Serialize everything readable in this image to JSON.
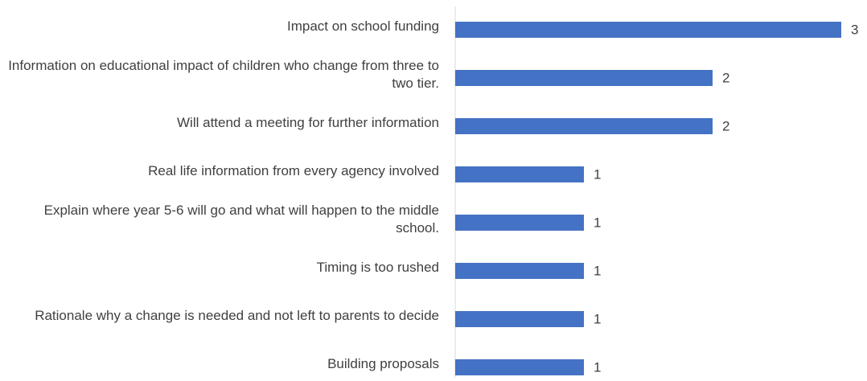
{
  "chart_data": {
    "type": "bar",
    "orientation": "horizontal",
    "categories": [
      "Impact on school funding",
      "Information on educational impact of children who change from three to two tier.",
      "Will attend a meeting for further information",
      "Real life information from every agency involved",
      "Explain where year 5-6 will go and what will happen to the middle school.",
      "Timing is too rushed",
      "Rationale why a change is needed and not left to parents to decide",
      "Building proposals"
    ],
    "values": [
      3,
      2,
      2,
      1,
      1,
      1,
      1,
      1
    ],
    "color": "#4472c4",
    "xlim": [
      0,
      3
    ]
  }
}
